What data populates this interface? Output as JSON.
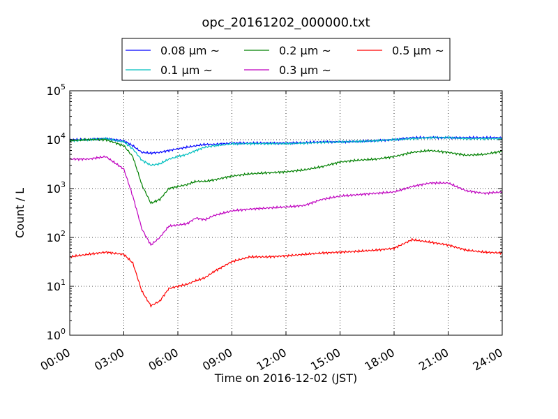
{
  "chart_data": {
    "type": "line",
    "title": "opc_20161202_000000.txt",
    "xlabel": "Time on 2016-12-02 (JST)",
    "ylabel": "Count / L",
    "y_scale": "log",
    "ylim": [
      1,
      100000
    ],
    "xlim": [
      "00:00",
      "24:00"
    ],
    "grid": true,
    "legend_position": "top, above plot",
    "x_ticks": [
      "00:00",
      "03:00",
      "06:00",
      "09:00",
      "12:00",
      "15:00",
      "18:00",
      "21:00",
      "24:00"
    ],
    "y_ticks": [
      {
        "base": "10",
        "exp": "0"
      },
      {
        "base": "10",
        "exp": "1"
      },
      {
        "base": "10",
        "exp": "2"
      },
      {
        "base": "10",
        "exp": "3"
      },
      {
        "base": "10",
        "exp": "4"
      },
      {
        "base": "10",
        "exp": "5"
      }
    ],
    "x": [
      "00:00",
      "01:00",
      "02:00",
      "03:00",
      "03:30",
      "04:00",
      "04:30",
      "05:00",
      "05:30",
      "06:00",
      "06:30",
      "07:00",
      "07:30",
      "08:00",
      "09:00",
      "10:00",
      "11:00",
      "12:00",
      "13:00",
      "14:00",
      "15:00",
      "16:00",
      "17:00",
      "18:00",
      "19:00",
      "20:00",
      "21:00",
      "22:00",
      "23:00",
      "24:00"
    ],
    "series": [
      {
        "name": "0.08 µm ~",
        "color": "#0000ff",
        "values": [
          10000,
          10000,
          10500,
          9500,
          7500,
          5500,
          5300,
          5500,
          6000,
          6500,
          7000,
          7500,
          8000,
          8000,
          8500,
          8500,
          8500,
          8500,
          8700,
          9000,
          9000,
          9200,
          9500,
          10000,
          11000,
          11000,
          11000,
          11000,
          11000,
          11000
        ]
      },
      {
        "name": "0.1 µm ~",
        "color": "#00bfbf",
        "values": [
          9500,
          10000,
          10500,
          9000,
          6500,
          3800,
          3000,
          3200,
          4000,
          4500,
          5000,
          6000,
          7000,
          7500,
          8200,
          8300,
          8300,
          8300,
          8500,
          8800,
          9000,
          9200,
          9500,
          10000,
          10500,
          11000,
          11000,
          10500,
          10500,
          10500
        ]
      },
      {
        "name": "0.2 µm ~",
        "color": "#008000",
        "values": [
          9500,
          10000,
          10000,
          7500,
          4500,
          1200,
          500,
          600,
          1000,
          1100,
          1200,
          1400,
          1400,
          1500,
          1800,
          2000,
          2100,
          2200,
          2400,
          2800,
          3500,
          3800,
          4000,
          4500,
          5500,
          6000,
          5500,
          4800,
          5000,
          5800
        ]
      },
      {
        "name": "0.3 µm ~",
        "color": "#bf00bf",
        "values": [
          4000,
          4000,
          4500,
          2500,
          700,
          150,
          70,
          100,
          170,
          180,
          190,
          250,
          230,
          280,
          350,
          380,
          400,
          420,
          450,
          600,
          700,
          750,
          800,
          850,
          1100,
          1300,
          1300,
          900,
          800,
          850
        ]
      },
      {
        "name": "0.5 µm ~",
        "color": "#ff0000",
        "values": [
          40,
          45,
          50,
          45,
          30,
          8,
          4,
          5,
          9,
          10,
          11,
          13,
          15,
          20,
          32,
          40,
          40,
          42,
          45,
          48,
          50,
          52,
          55,
          60,
          90,
          80,
          70,
          55,
          50,
          48
        ]
      }
    ]
  }
}
